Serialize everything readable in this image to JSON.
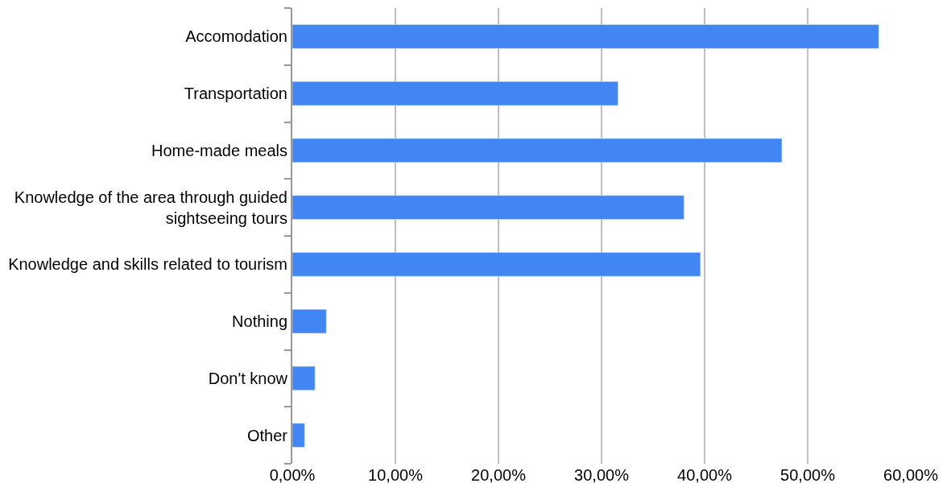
{
  "chart_data": {
    "type": "bar",
    "orientation": "horizontal",
    "categories": [
      "Accomodation",
      "Transportation",
      "Home-made meals",
      "Knowledge of the area through guided sightseeing tours",
      "Knowledge and skills related to tourism",
      "Nothing",
      "Don't know",
      "Other"
    ],
    "values": [
      56.9,
      31.6,
      47.5,
      38.0,
      39.6,
      3.3,
      2.2,
      1.2
    ],
    "color": "#4286f4",
    "xlim": [
      0,
      60
    ],
    "xticks": [
      {
        "value": 0,
        "label": "0,00%"
      },
      {
        "value": 10,
        "label": "10,00%"
      },
      {
        "value": 20,
        "label": "20,00%"
      },
      {
        "value": 30,
        "label": "30,00%"
      },
      {
        "value": 40,
        "label": "40,00%"
      },
      {
        "value": 50,
        "label": "50,00%"
      },
      {
        "value": 60,
        "label": "60,00%"
      }
    ],
    "grid": "x"
  }
}
